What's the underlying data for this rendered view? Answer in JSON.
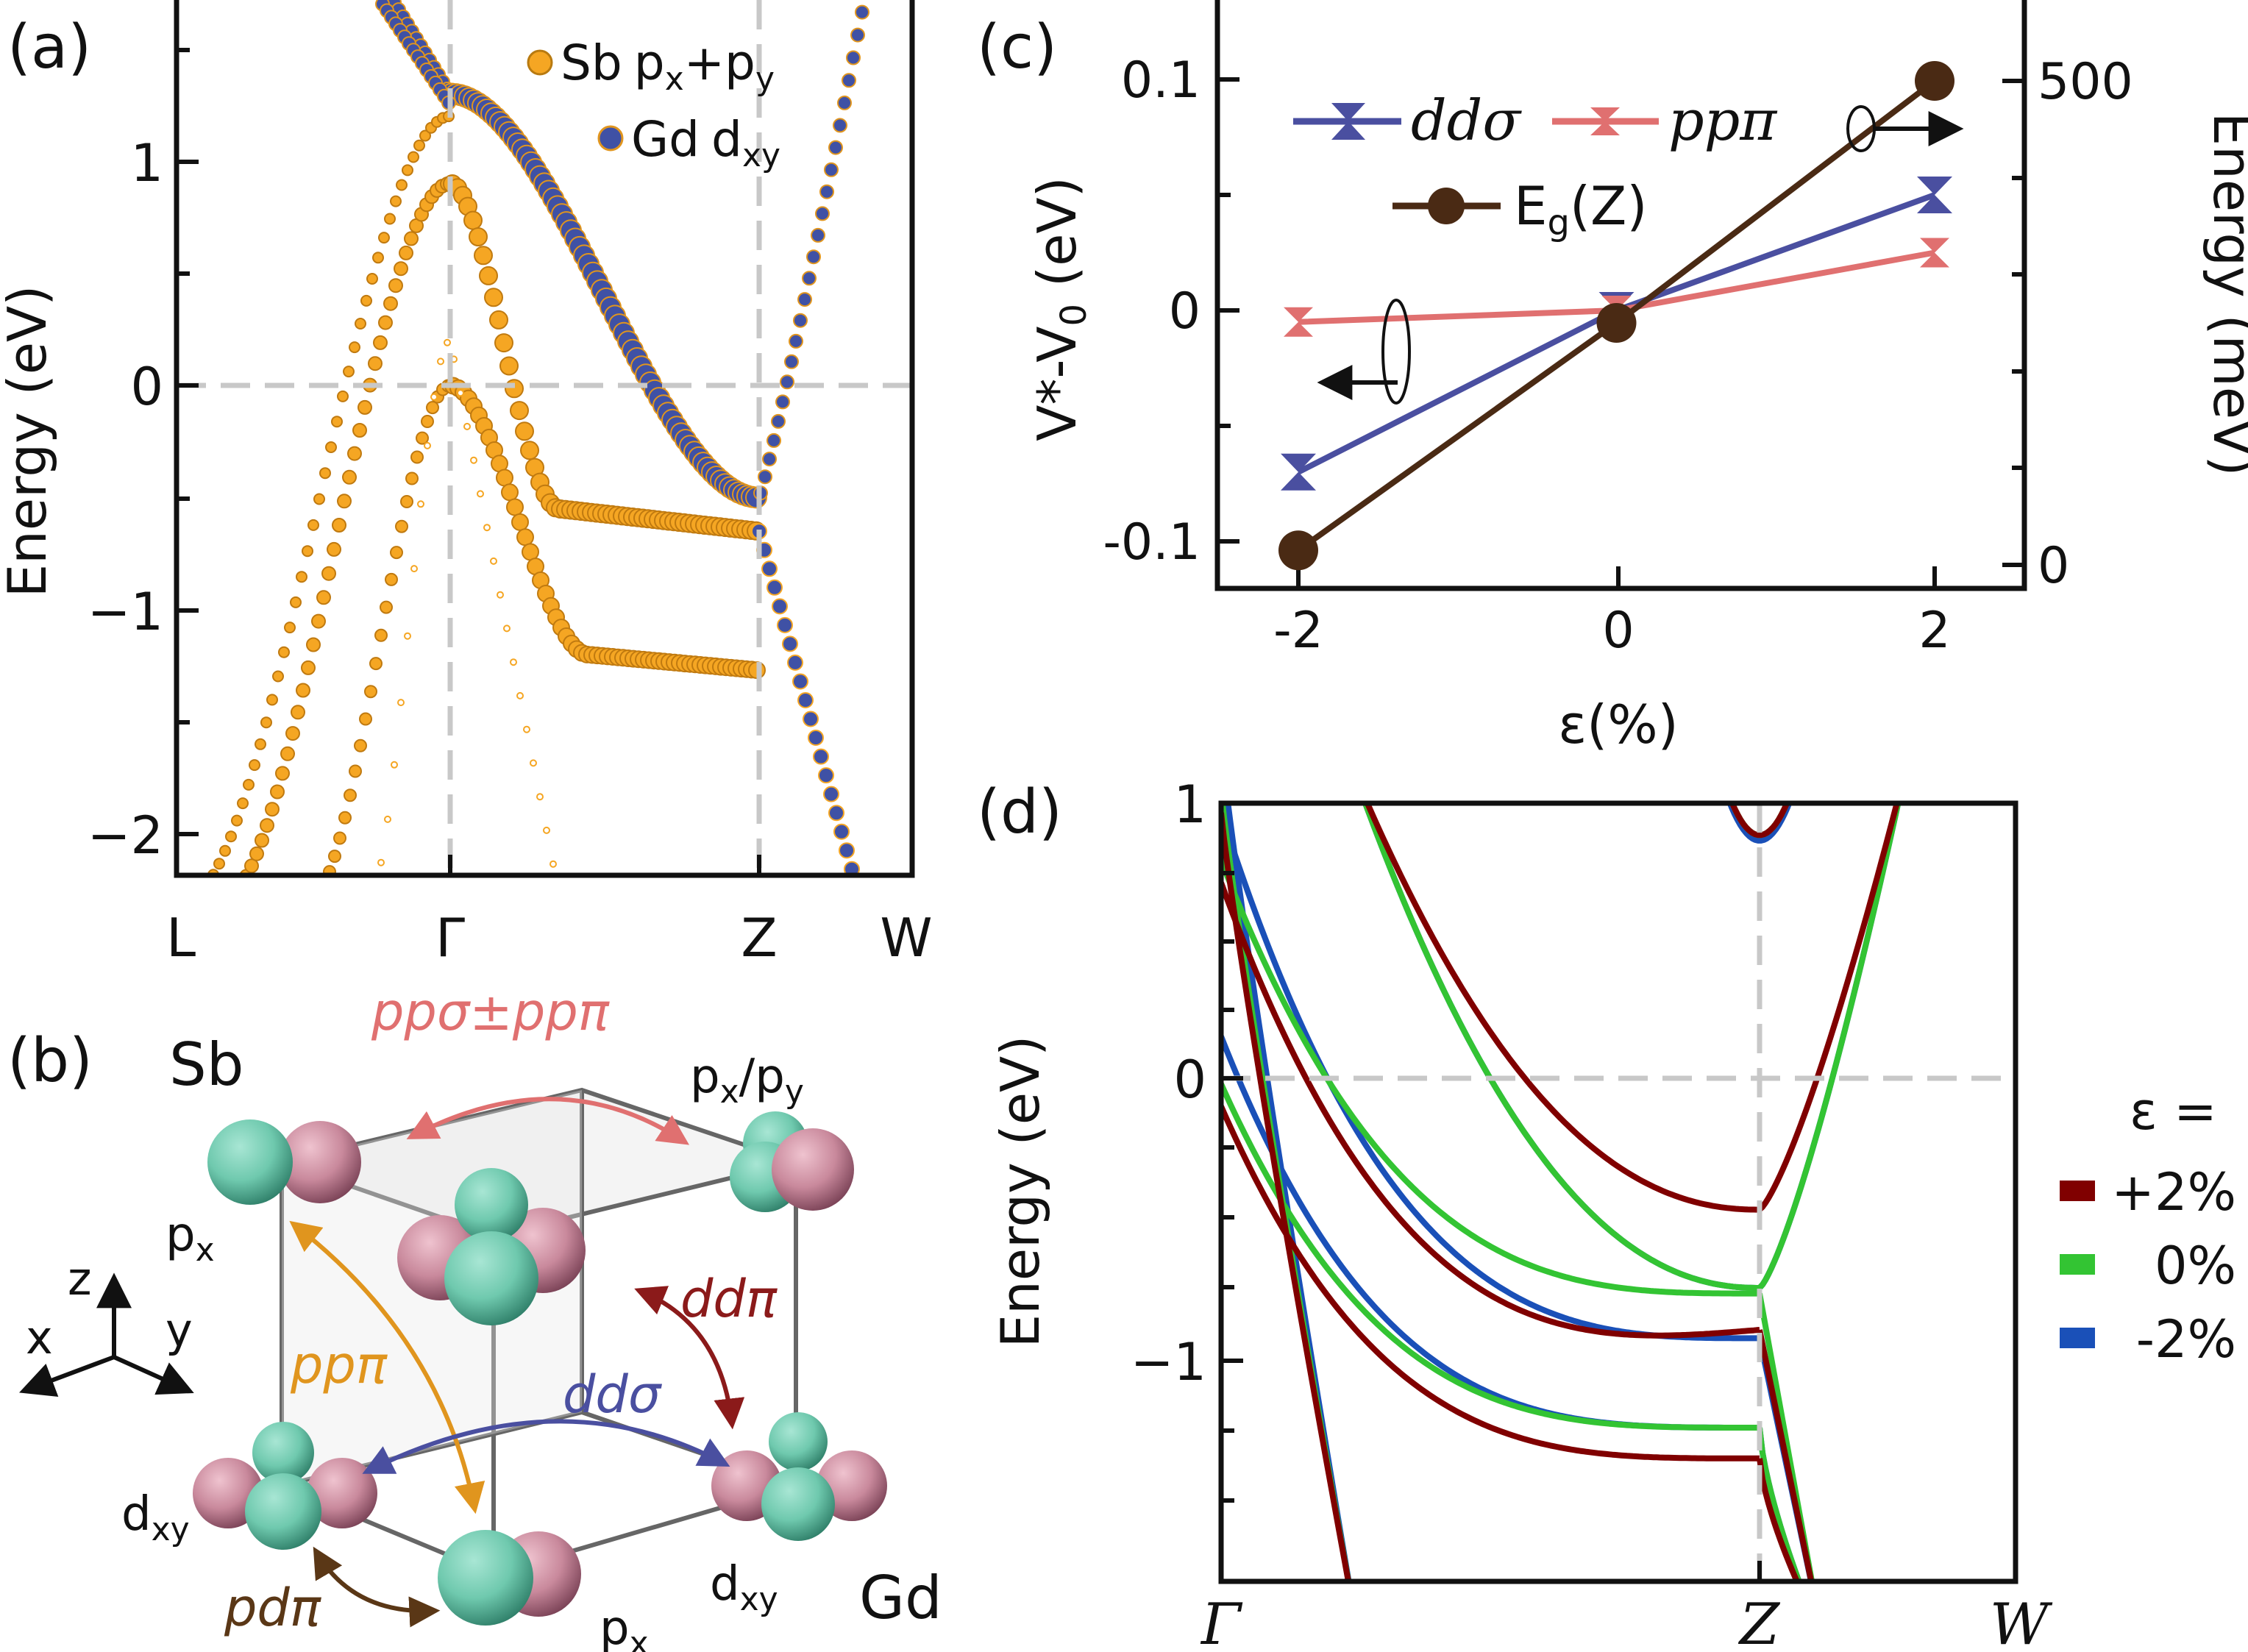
{
  "panel_labels": {
    "a": "(a)",
    "b": "(b)",
    "c": "(c)",
    "d": "(d)"
  },
  "colors": {
    "sb_orange": "#F5A623",
    "gd_blue": "#3F51A5",
    "plus2_darkred": "#800000",
    "zero_green": "#33C433",
    "minus2_blue": "#1A50B8",
    "ppn_pink": "#E07070",
    "ddsig_blue": "#4A4FA0",
    "eg_brown": "#4A2A14",
    "pp_orange": "#E0951E",
    "ddpi_red": "#8B1A1A",
    "pdpi_brown": "#5A3716",
    "orbital_green": "#6FC9AE",
    "orbital_mauve": "#C9899C"
  },
  "panel_a": {
    "ylabel": "Energy (eV)",
    "y_ticks": [
      "1",
      "0",
      "−1",
      "−2"
    ],
    "k_labels": [
      "L",
      "Γ",
      "Z",
      "W"
    ],
    "legend": [
      {
        "name": "Sb",
        "orb": "p",
        "s1": "x",
        "mid": "+p",
        "s2": "y"
      },
      {
        "name": "Gd",
        "orb": "d",
        "s1": "xy",
        "mid": "",
        "s2": ""
      }
    ]
  },
  "panel_b": {
    "atom_sb": "Sb",
    "atom_gd": "Gd",
    "hop_top": "ppσ±ppπ",
    "hop_pppi": "ppπ",
    "hop_ddsig": "ddσ",
    "hop_ddpi": "ddπ",
    "hop_pdpi": "pdπ",
    "orb_px": "p",
    "orb_px_sub": "x",
    "orb_pxpy_a": "p",
    "orb_pxpy_sub1": "x",
    "orb_pxpy_b": "/p",
    "orb_pxpy_sub2": "y",
    "orb_d": "d",
    "orb_d_sub": "xy",
    "axis_x": "x",
    "axis_y": "y",
    "axis_z": "z"
  },
  "panel_c": {
    "xlabel": "ε(%)",
    "ylabel_left_main": "V*-V",
    "ylabel_left_sub": "0",
    "ylabel_left_unit": " (eV)",
    "ylabel_right": "Energy (meV)",
    "x_ticks": [
      "-2",
      "0",
      "2"
    ],
    "y_left_ticks": [
      "0.1",
      "0",
      "-0.1"
    ],
    "y_right_ticks": [
      "500",
      "0"
    ],
    "legend_ddsig": "ddσ",
    "legend_pppi": "ppπ",
    "legend_eg_main": "E",
    "legend_eg_sub": "g",
    "legend_eg_tail": "(Z)"
  },
  "panel_d": {
    "ylabel": "Energy (eV)",
    "y_ticks": [
      "1",
      "0",
      "−1"
    ],
    "k_labels": [
      "Γ",
      "Z",
      "W"
    ],
    "legend_title": "ε =",
    "legend_items": [
      "+2%",
      "0%",
      "-2%"
    ]
  },
  "chart_data": [
    {
      "panel": "a",
      "type": "scatter",
      "subtype": "fat-band structure",
      "xlabel": "",
      "ylabel": "Energy (eV)",
      "ylim": [
        -2.2,
        1.7
      ],
      "k_path": [
        "L",
        "Γ",
        "Z",
        "W"
      ],
      "series": [
        {
          "name": "Sb p_x+p_y",
          "band_Gamma_eV": [
            0.9,
            0.0,
            -1.25
          ],
          "band_Z_eV": [
            -0.65,
            -1.27
          ]
        },
        {
          "name": "Gd d_xy",
          "band_Gamma_eV": [
            1.3
          ],
          "band_Z_eV": [
            -0.5
          ]
        }
      ]
    },
    {
      "panel": "c",
      "type": "line",
      "xlabel": "ε(%)",
      "ylabel": "V*-V0 (eV)",
      "y2label": "Energy (meV)",
      "x": [
        -2,
        0,
        2
      ],
      "ylim": [
        -0.115,
        0.12
      ],
      "y2lim": [
        -15,
        520
      ],
      "series": [
        {
          "name": "ddσ",
          "axis": "left",
          "values": [
            -0.07,
            0.0,
            0.05
          ]
        },
        {
          "name": "ppπ",
          "axis": "left",
          "values": [
            -0.005,
            0.0,
            0.025
          ]
        },
        {
          "name": "E_g(Z)",
          "axis": "right",
          "values": [
            15,
            250,
            500
          ]
        }
      ]
    },
    {
      "panel": "d",
      "type": "line",
      "subtype": "band structure",
      "xlabel": "",
      "ylabel": "Energy (eV)",
      "ylim": [
        -1.75,
        1.0
      ],
      "k_path": [
        "Γ",
        "Z",
        "W"
      ],
      "series": [
        {
          "name": "+2%",
          "bands_at_Z_eV": [
            -0.47,
            -0.9,
            -1.36,
            0.87
          ]
        },
        {
          "name": "0%",
          "bands_at_Z_eV": [
            -0.75,
            -0.77,
            -1.25,
            0.87
          ]
        },
        {
          "name": "-2%",
          "bands_at_Z_eV": [
            -0.75,
            -0.93,
            -1.25,
            0.85
          ]
        }
      ]
    }
  ]
}
